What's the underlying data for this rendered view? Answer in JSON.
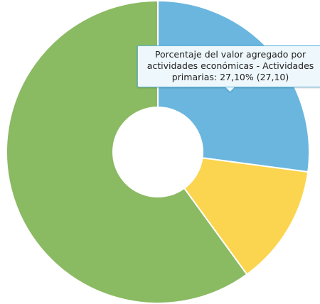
{
  "chart_data": {
    "type": "pie",
    "title": "",
    "slices": [
      {
        "label": "Actividades primarias",
        "value": 27.1,
        "color": "#6ab6de"
      },
      {
        "label": "",
        "value": 12.9,
        "color": "#fbd54f"
      },
      {
        "label": "",
        "value": 60.0,
        "color": "#8aba62"
      }
    ],
    "hole": true,
    "legend": "none",
    "tooltip": {
      "line1": "Porcentaje del valor agregado por",
      "line2": "actividades económicas - Actividades",
      "line3": "primarias: 27,10% (27,10)"
    }
  }
}
